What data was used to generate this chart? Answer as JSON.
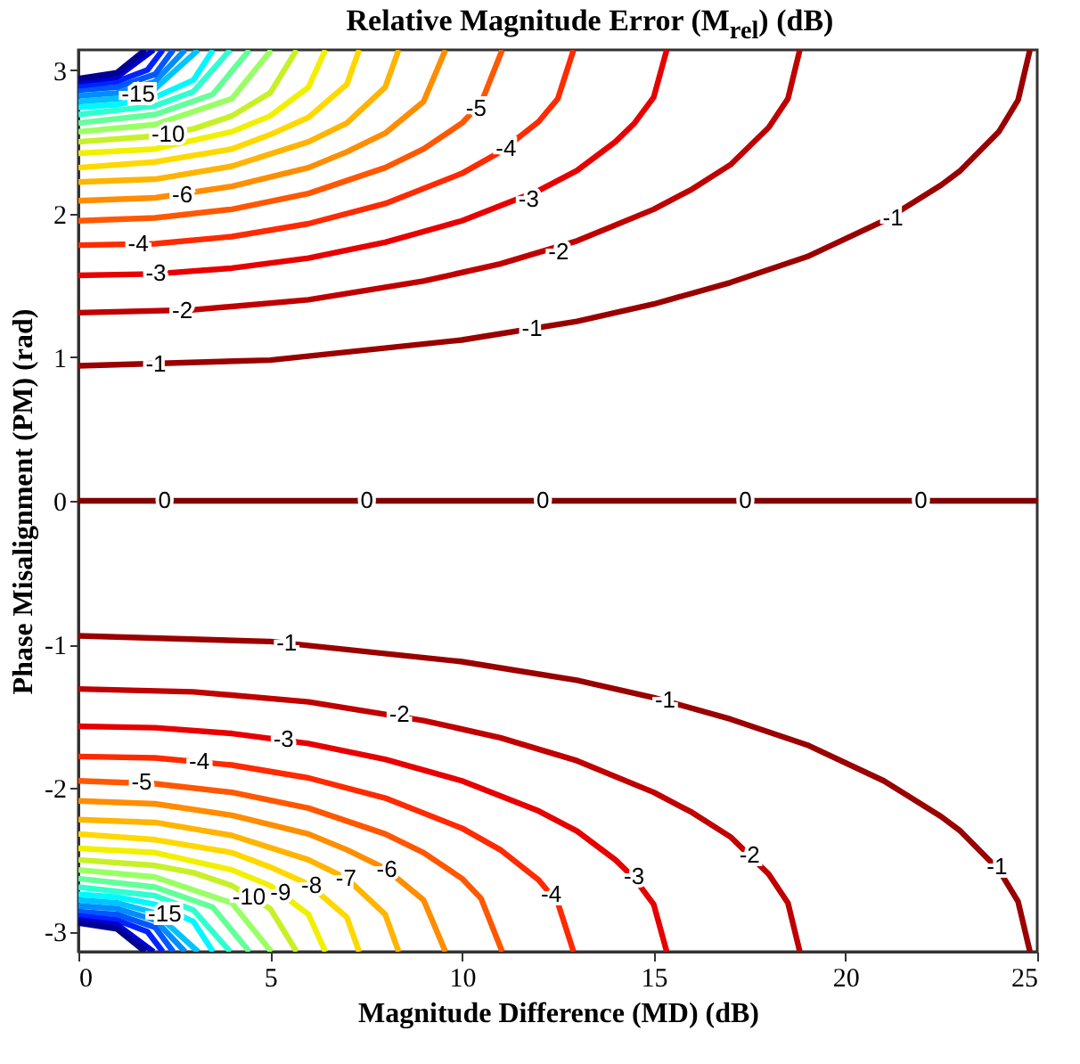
{
  "chart_data": {
    "type": "line",
    "title": "Relative Magnitude Error (M$_{rel}$) (dB)",
    "xlabel": "Magnitude Difference (MD) (dB)",
    "ylabel": "Phase Misalignment (PM) (rad)",
    "xlim": [
      0,
      25
    ],
    "xticks": [
      0,
      5,
      10,
      15,
      20,
      25
    ],
    "ylim": [
      -3.14,
      3.14
    ],
    "yticks": [
      -3,
      -2,
      -1,
      0,
      1,
      2,
      3
    ],
    "series": [
      {
        "color": "#800000",
        "x": [
          0,
          25
        ],
        "values": [
          0,
          0
        ]
      },
      {
        "color": "#9a0000",
        "x": [
          0,
          5,
          10,
          13,
          15,
          17,
          19,
          21,
          22.5,
          23,
          24,
          24.5,
          24.81
        ],
        "values": [
          0.94,
          0.98,
          1.12,
          1.25,
          1.37,
          1.52,
          1.7,
          1.95,
          2.2,
          2.3,
          2.57,
          2.79,
          3.14
        ]
      },
      {
        "color": "#9a0000",
        "x": [
          0,
          5,
          10,
          13,
          15,
          17,
          19,
          21,
          22.5,
          23,
          24,
          24.5,
          24.81
        ],
        "values": [
          -0.94,
          -0.98,
          -1.12,
          -1.25,
          -1.37,
          -1.52,
          -1.7,
          -1.95,
          -2.2,
          -2.3,
          -2.57,
          -2.79,
          -3.14
        ]
      },
      {
        "color": "#c00000",
        "x": [
          0,
          3,
          6,
          9,
          11,
          13,
          15,
          16,
          17,
          18,
          18.5,
          18.81
        ],
        "values": [
          1.31,
          1.33,
          1.4,
          1.53,
          1.65,
          1.81,
          2.03,
          2.17,
          2.34,
          2.6,
          2.8,
          3.14
        ]
      },
      {
        "color": "#c00000",
        "x": [
          0,
          3,
          6,
          9,
          11,
          13,
          15,
          16,
          17,
          18,
          18.5,
          18.81
        ],
        "values": [
          -1.31,
          -1.33,
          -1.4,
          -1.53,
          -1.65,
          -1.81,
          -2.03,
          -2.17,
          -2.34,
          -2.6,
          -2.8,
          -3.14
        ]
      },
      {
        "color": "#e80000",
        "x": [
          0,
          2,
          4,
          6,
          8,
          10,
          12,
          13,
          14,
          14.5,
          15,
          15.34
        ],
        "values": [
          1.57,
          1.58,
          1.62,
          1.69,
          1.8,
          1.95,
          2.16,
          2.3,
          2.5,
          2.63,
          2.81,
          3.14
        ]
      },
      {
        "color": "#e80000",
        "x": [
          0,
          2,
          4,
          6,
          8,
          10,
          12,
          13,
          14,
          14.5,
          15,
          15.34
        ],
        "values": [
          -1.57,
          -1.58,
          -1.62,
          -1.69,
          -1.8,
          -1.95,
          -2.16,
          -2.3,
          -2.5,
          -2.63,
          -2.81,
          -3.14
        ]
      },
      {
        "color": "#ff2a00",
        "x": [
          0,
          2,
          4,
          6,
          8,
          10,
          11,
          12,
          12.5,
          12.91
        ],
        "values": [
          1.78,
          1.79,
          1.84,
          1.93,
          2.07,
          2.28,
          2.43,
          2.64,
          2.8,
          3.14
        ]
      },
      {
        "color": "#ff2a00",
        "x": [
          0,
          2,
          4,
          6,
          8,
          10,
          11,
          12,
          12.5,
          12.91
        ],
        "values": [
          -1.78,
          -1.79,
          -1.84,
          -1.93,
          -2.07,
          -2.28,
          -2.43,
          -2.64,
          -2.8,
          -3.14
        ]
      },
      {
        "color": "#ff5700",
        "x": [
          0,
          2,
          4,
          6,
          8,
          9,
          10,
          10.5,
          11.05
        ],
        "values": [
          1.95,
          1.97,
          2.03,
          2.14,
          2.32,
          2.45,
          2.63,
          2.77,
          3.14
        ]
      },
      {
        "color": "#ff5700",
        "x": [
          0,
          2,
          4,
          6,
          8,
          9,
          10,
          10.5,
          11.05
        ],
        "values": [
          -1.95,
          -1.97,
          -2.03,
          -2.14,
          -2.32,
          -2.45,
          -2.63,
          -2.77,
          -3.14
        ]
      },
      {
        "color": "#ff8d00",
        "x": [
          0,
          2,
          4,
          6,
          7,
          8,
          9,
          9.57
        ],
        "values": [
          2.09,
          2.11,
          2.19,
          2.32,
          2.43,
          2.56,
          2.78,
          3.14
        ]
      },
      {
        "color": "#ff8d00",
        "x": [
          0,
          2,
          4,
          6,
          7,
          8,
          9,
          9.57
        ],
        "values": [
          -2.09,
          -2.11,
          -2.19,
          -2.32,
          -2.43,
          -2.56,
          -2.78,
          -3.14
        ]
      },
      {
        "color": "#ffb400",
        "x": [
          0,
          2,
          4,
          6,
          7,
          8,
          8.35
        ],
        "values": [
          2.22,
          2.24,
          2.33,
          2.5,
          2.63,
          2.88,
          3.14
        ]
      },
      {
        "color": "#ffb400",
        "x": [
          0,
          2,
          4,
          6,
          7,
          8,
          8.35
        ],
        "values": [
          -2.22,
          -2.24,
          -2.33,
          -2.5,
          -2.63,
          -2.88,
          -3.14
        ]
      },
      {
        "color": "#ffd800",
        "x": [
          0,
          2,
          4,
          5,
          6,
          7,
          7.32
        ],
        "values": [
          2.32,
          2.36,
          2.45,
          2.55,
          2.67,
          2.9,
          3.14
        ]
      },
      {
        "color": "#ffd800",
        "x": [
          0,
          2,
          4,
          5,
          6,
          7,
          7.32
        ],
        "values": [
          -2.32,
          -2.36,
          -2.45,
          -2.55,
          -2.67,
          -2.9,
          -3.14
        ]
      },
      {
        "color": "#f0f000",
        "x": [
          0,
          2,
          4,
          5,
          6,
          6.44
        ],
        "values": [
          2.42,
          2.45,
          2.57,
          2.68,
          2.88,
          3.14
        ]
      },
      {
        "color": "#f0f000",
        "x": [
          0,
          2,
          4,
          5,
          6,
          6.44
        ],
        "values": [
          -2.42,
          -2.45,
          -2.57,
          -2.68,
          -2.88,
          -3.14
        ]
      },
      {
        "color": "#c8f028",
        "x": [
          0,
          2,
          3,
          4,
          5,
          5.69
        ],
        "values": [
          2.5,
          2.54,
          2.59,
          2.68,
          2.84,
          3.14
        ]
      },
      {
        "color": "#c8f028",
        "x": [
          0,
          2,
          3,
          4,
          5,
          5.69
        ],
        "values": [
          -2.5,
          -2.54,
          -2.59,
          -2.68,
          -2.84,
          -3.14
        ]
      },
      {
        "color": "#9aff65",
        "x": [
          0,
          2,
          4,
          5.03
        ],
        "values": [
          2.57,
          2.62,
          2.8,
          3.14
        ]
      },
      {
        "color": "#9aff65",
        "x": [
          0,
          2,
          4,
          5.03
        ],
        "values": [
          -2.57,
          -2.62,
          -2.8,
          -3.14
        ]
      },
      {
        "color": "#65ff9a",
        "x": [
          0,
          2,
          3.5,
          4.46
        ],
        "values": [
          2.63,
          2.69,
          2.83,
          3.14
        ]
      },
      {
        "color": "#65ff9a",
        "x": [
          0,
          2,
          3.5,
          4.46
        ],
        "values": [
          -2.63,
          -2.69,
          -2.83,
          -3.14
        ]
      },
      {
        "color": "#2fffd0",
        "x": [
          0,
          2,
          3,
          3.96
        ],
        "values": [
          2.69,
          2.75,
          2.85,
          3.14
        ]
      },
      {
        "color": "#2fffd0",
        "x": [
          0,
          2,
          3,
          3.96
        ],
        "values": [
          -2.69,
          -2.75,
          -2.85,
          -3.14
        ]
      },
      {
        "color": "#00f8ff",
        "x": [
          0,
          1,
          2,
          3,
          3.51
        ],
        "values": [
          2.74,
          2.76,
          2.81,
          2.93,
          3.14
        ]
      },
      {
        "color": "#00f8ff",
        "x": [
          0,
          1,
          2,
          3,
          3.51
        ],
        "values": [
          -2.74,
          -2.76,
          -2.81,
          -2.93,
          -3.14
        ]
      },
      {
        "color": "#00c3ff",
        "x": [
          0,
          1,
          2,
          3.12
        ],
        "values": [
          2.78,
          2.8,
          2.87,
          3.14
        ]
      },
      {
        "color": "#00c3ff",
        "x": [
          0,
          1,
          2,
          3.12
        ],
        "values": [
          -2.78,
          -2.8,
          -2.87,
          -3.14
        ]
      },
      {
        "color": "#008dff",
        "x": [
          0,
          1,
          2,
          2.78
        ],
        "values": [
          2.82,
          2.84,
          2.92,
          3.14
        ]
      },
      {
        "color": "#008dff",
        "x": [
          0,
          1,
          2,
          2.78
        ],
        "values": [
          -2.82,
          -2.84,
          -2.92,
          -3.14
        ]
      },
      {
        "color": "#0057ff",
        "x": [
          0,
          1,
          2,
          2.47
        ],
        "values": [
          2.86,
          2.88,
          2.97,
          3.14
        ]
      },
      {
        "color": "#0057ff",
        "x": [
          0,
          1,
          2,
          2.47
        ],
        "values": [
          -2.86,
          -2.88,
          -2.97,
          -3.14
        ]
      },
      {
        "color": "#0022ff",
        "x": [
          0,
          1,
          1.8,
          2.2
        ],
        "values": [
          2.89,
          2.92,
          3.0,
          3.14
        ]
      },
      {
        "color": "#0022ff",
        "x": [
          0,
          1,
          1.8,
          2.2
        ],
        "values": [
          -2.89,
          -2.92,
          -3.0,
          -3.14
        ]
      },
      {
        "color": "#0000d0",
        "x": [
          0,
          1,
          1.96
        ],
        "values": [
          2.92,
          2.95,
          3.14
        ]
      },
      {
        "color": "#0000d0",
        "x": [
          0,
          1,
          1.96
        ],
        "values": [
          -2.92,
          -2.95,
          -3.14
        ]
      },
      {
        "color": "#000090",
        "x": [
          0,
          1,
          1.74
        ],
        "values": [
          2.94,
          2.98,
          3.14
        ]
      },
      {
        "color": "#000090",
        "x": [
          0,
          1,
          1.74
        ],
        "values": [
          -2.94,
          -2.98,
          -3.14
        ]
      }
    ],
    "annotations": [
      {
        "text": "0",
        "x": 2.25,
        "y": 0
      },
      {
        "text": "0",
        "x": 7.52,
        "y": 0
      },
      {
        "text": "0",
        "x": 12.11,
        "y": 0
      },
      {
        "text": "0",
        "x": 17.39,
        "y": 0
      },
      {
        "text": "0",
        "x": 21.97,
        "y": 0
      },
      {
        "text": "-1",
        "x": 2.02,
        "y": 0.95
      },
      {
        "text": "-2",
        "x": 2.71,
        "y": 1.32
      },
      {
        "text": "-3",
        "x": 2.02,
        "y": 1.58
      },
      {
        "text": "-4",
        "x": 1.56,
        "y": 1.79
      },
      {
        "text": "-6",
        "x": 2.71,
        "y": 2.13
      },
      {
        "text": "-10",
        "x": 2.34,
        "y": 2.55
      },
      {
        "text": "-15",
        "x": 1.56,
        "y": 2.83
      },
      {
        "text": "-1",
        "x": 11.83,
        "y": 1.2
      },
      {
        "text": "-2",
        "x": 12.52,
        "y": 1.73
      },
      {
        "text": "-3",
        "x": 11.74,
        "y": 2.1
      },
      {
        "text": "-4",
        "x": 11.15,
        "y": 2.45
      },
      {
        "text": "-5",
        "x": 10.37,
        "y": 2.73
      },
      {
        "text": "-1",
        "x": 21.24,
        "y": 1.97
      },
      {
        "text": "-1",
        "x": 5.43,
        "y": -0.99
      },
      {
        "text": "-1",
        "x": 15.3,
        "y": -1.39
      },
      {
        "text": "-1",
        "x": 23.95,
        "y": -2.55
      },
      {
        "text": "-2",
        "x": 8.37,
        "y": -1.49
      },
      {
        "text": "-2",
        "x": 17.5,
        "y": -2.47
      },
      {
        "text": "-3",
        "x": 5.35,
        "y": -1.66
      },
      {
        "text": "-3",
        "x": 14.49,
        "y": -2.62
      },
      {
        "text": "-4",
        "x": 3.15,
        "y": -1.82
      },
      {
        "text": "-4",
        "x": 12.33,
        "y": -2.74
      },
      {
        "text": "-5",
        "x": 1.65,
        "y": -1.96
      },
      {
        "text": "-6",
        "x": 8.04,
        "y": -2.57
      },
      {
        "text": "-7",
        "x": 6.98,
        "y": -2.63
      },
      {
        "text": "-8",
        "x": 6.08,
        "y": -2.68
      },
      {
        "text": "-9",
        "x": 5.27,
        "y": -2.73
      },
      {
        "text": "-10",
        "x": 4.45,
        "y": -2.76
      },
      {
        "text": "-15",
        "x": 2.25,
        "y": -2.88
      }
    ]
  }
}
